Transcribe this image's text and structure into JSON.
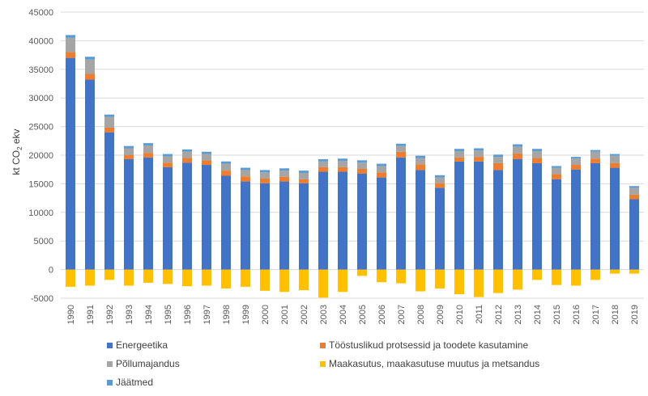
{
  "chart_data": {
    "type": "bar",
    "stacked": true,
    "title": "",
    "xlabel": "",
    "ylabel": "kt CO2 ekv",
    "ylabel_parts": {
      "pre": "kt CO",
      "sub": "2",
      "post": " ekv"
    },
    "ylim": [
      -5000,
      45000
    ],
    "yticks": [
      -5000,
      0,
      5000,
      10000,
      15000,
      20000,
      25000,
      30000,
      35000,
      40000,
      45000
    ],
    "grid": true,
    "legend_position": "bottom",
    "categories": [
      "1990",
      "1991",
      "1992",
      "1993",
      "1994",
      "1995",
      "1996",
      "1997",
      "1998",
      "1999",
      "2000",
      "2001",
      "2002",
      "2003",
      "2004",
      "2005",
      "2006",
      "2007",
      "2008",
      "2009",
      "2010",
      "2011",
      "2012",
      "2013",
      "2014",
      "2015",
      "2016",
      "2017",
      "2018",
      "2019"
    ],
    "series": [
      {
        "name": "Energeetika",
        "color": "#4472C4",
        "values": [
          37000,
          33200,
          24000,
          19300,
          19600,
          17900,
          18700,
          18300,
          16400,
          15400,
          15100,
          15400,
          15100,
          17100,
          17100,
          16800,
          16100,
          19600,
          17400,
          14300,
          18900,
          18900,
          17400,
          19300,
          18600,
          15800,
          17500,
          18600,
          17800,
          12300
        ]
      },
      {
        "name": "Tööstuslikud protsessid ja toodete kasutamine",
        "color": "#ED7D31",
        "values": [
          1000,
          1000,
          800,
          700,
          800,
          800,
          800,
          800,
          900,
          900,
          800,
          800,
          700,
          800,
          800,
          800,
          900,
          1000,
          1000,
          800,
          700,
          800,
          1200,
          1000,
          900,
          900,
          800,
          800,
          800,
          800
        ]
      },
      {
        "name": "Põllumajandus",
        "color": "#A5A5A5",
        "values": [
          2500,
          2500,
          1900,
          1200,
          1300,
          1100,
          1100,
          1100,
          1200,
          1100,
          1100,
          1100,
          1100,
          1000,
          1100,
          1100,
          1100,
          1000,
          1100,
          1000,
          1100,
          1100,
          1100,
          1200,
          1200,
          1100,
          1100,
          1200,
          1300,
          1200
        ]
      },
      {
        "name": "Maakasutus, maakasutuse muutus ja metsandus",
        "color": "#FFC000",
        "values": [
          -3000,
          -2800,
          -1800,
          -2800,
          -2300,
          -2500,
          -2900,
          -2800,
          -3300,
          -3000,
          -3700,
          -3900,
          -3600,
          -4900,
          -3900,
          -1100,
          -2200,
          -2400,
          -3800,
          -3300,
          -4300,
          -4800,
          -4100,
          -3500,
          -1800,
          -2700,
          -2800,
          -1800,
          -700,
          -700
        ]
      },
      {
        "name": "Jäätmed",
        "color": "#5B9BD5",
        "values": [
          500,
          500,
          400,
          400,
          400,
          400,
          400,
          400,
          400,
          400,
          400,
          400,
          400,
          400,
          400,
          400,
          400,
          400,
          400,
          400,
          400,
          400,
          400,
          400,
          400,
          300,
          300,
          300,
          300,
          300
        ]
      }
    ],
    "legend_order": [
      0,
      1,
      2,
      3,
      4
    ]
  }
}
